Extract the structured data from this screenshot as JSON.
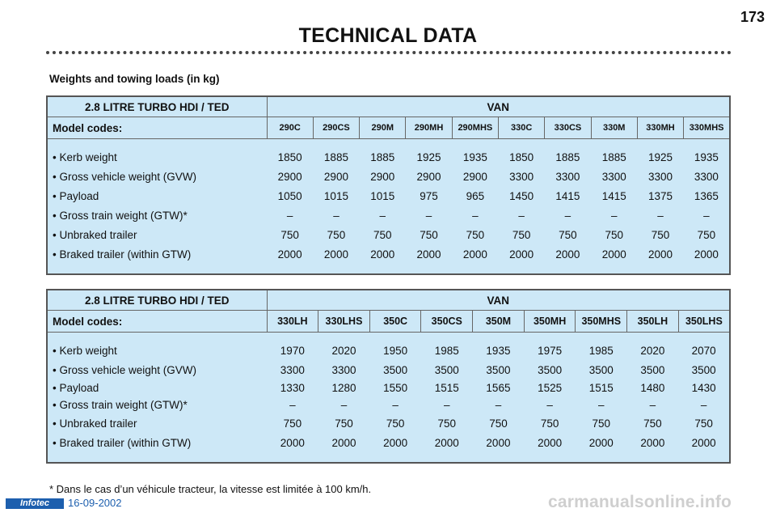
{
  "header": {
    "page_number": "173",
    "title": "TECHNICAL DATA"
  },
  "section_heading": "Weights and towing loads (in kg)",
  "tables": [
    {
      "engine": "2.8 LITRE TURBO HDI / TED",
      "body_type": "VAN",
      "codes_label": "Model codes:",
      "codes": [
        "290C",
        "290CS",
        "290M",
        "290MH",
        "290MHS",
        "330C",
        "330CS",
        "330M",
        "330MH",
        "330MHS"
      ],
      "rows": [
        {
          "label": "• Kerb weight",
          "values": [
            "1850",
            "1885",
            "1885",
            "1925",
            "1935",
            "1850",
            "1885",
            "1885",
            "1925",
            "1935"
          ]
        },
        {
          "label": "• Gross vehicle weight (GVW)",
          "values": [
            "2900",
            "2900",
            "2900",
            "2900",
            "2900",
            "3300",
            "3300",
            "3300",
            "3300",
            "3300"
          ]
        },
        {
          "label": "• Payload",
          "values": [
            "1050",
            "1015",
            "1015",
            "975",
            "965",
            "1450",
            "1415",
            "1415",
            "1375",
            "1365"
          ]
        },
        {
          "label": "• Gross train weight (GTW)*",
          "values": [
            "–",
            "–",
            "–",
            "–",
            "–",
            "–",
            "–",
            "–",
            "–",
            "–"
          ]
        },
        {
          "label": "• Unbraked trailer",
          "values": [
            "750",
            "750",
            "750",
            "750",
            "750",
            "750",
            "750",
            "750",
            "750",
            "750"
          ]
        },
        {
          "label": "• Braked trailer (within GTW)",
          "values": [
            "2000",
            "2000",
            "2000",
            "2000",
            "2000",
            "2000",
            "2000",
            "2000",
            "2000",
            "2000"
          ]
        }
      ]
    },
    {
      "engine": "2.8 LITRE TURBO HDI / TED",
      "body_type": "VAN",
      "codes_label": "Model codes:",
      "codes": [
        "330LH",
        "330LHS",
        "350C",
        "350CS",
        "350M",
        "350MH",
        "350MHS",
        "350LH",
        "350LHS"
      ],
      "rows": [
        {
          "label": "• Kerb weight",
          "values": [
            "1970",
            "2020",
            "1950",
            "1985",
            "1935",
            "1975",
            "1985",
            "2020",
            "2070"
          ]
        },
        {
          "label": "• Gross vehicle weight (GVW)",
          "values": [
            "3300",
            "3300",
            "3500",
            "3500",
            "3500",
            "3500",
            "3500",
            "3500",
            "3500"
          ]
        },
        {
          "label": "• Payload",
          "values": [
            "1330",
            "1280",
            "1550",
            "1515",
            "1565",
            "1525",
            "1515",
            "1480",
            "1430"
          ]
        },
        {
          "label": "• Gross train weight (GTW)*",
          "values": [
            "–",
            "–",
            "–",
            "–",
            "–",
            "–",
            "–",
            "–",
            "–"
          ]
        },
        {
          "label": "• Unbraked trailer",
          "values": [
            "750",
            "750",
            "750",
            "750",
            "750",
            "750",
            "750",
            "750",
            "750"
          ]
        },
        {
          "label": "• Braked trailer (within GTW)",
          "values": [
            "2000",
            "2000",
            "2000",
            "2000",
            "2000",
            "2000",
            "2000",
            "2000",
            "2000"
          ]
        }
      ]
    }
  ],
  "footnote": "* Dans le cas d’un véhicule tracteur, la vitesse est limitée à 100 km/h.",
  "footer": {
    "logo_text": "Infotec",
    "date": "16-09-2002",
    "watermark": "carmanualsonline.info"
  }
}
